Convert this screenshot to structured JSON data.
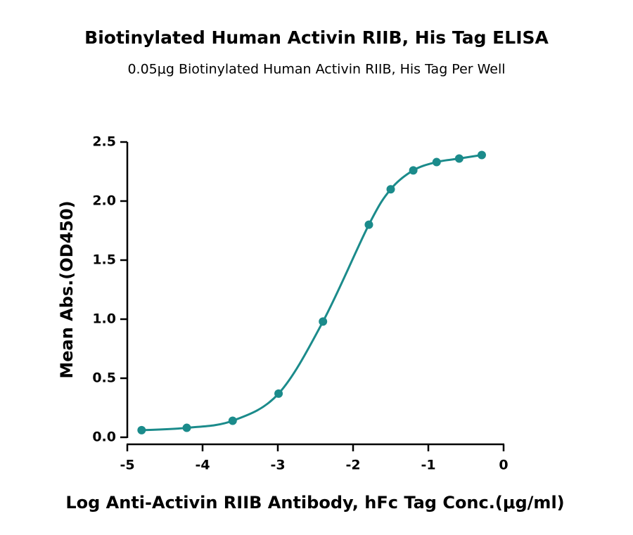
{
  "chart_data": {
    "type": "scatter",
    "title": "Biotinylated Human Activin RIIB, His Tag ELISA",
    "subtitle": "0.05μg Biotinylated Human Activin RIIB, His Tag Per Well",
    "x_label": "Log Anti-Activin RIIB Antibody, hFc Tag Conc.(μg/ml)",
    "y_label": "Mean Abs.(OD450)",
    "x": [
      -4.81,
      -4.21,
      -3.6,
      -2.99,
      -2.4,
      -1.79,
      -1.5,
      -1.2,
      -0.89,
      -0.59,
      -0.29
    ],
    "series": [
      {
        "color": "#1b8b8b",
        "values": [
          0.06,
          0.08,
          0.14,
          0.37,
          0.98,
          1.8,
          2.1,
          2.26,
          2.33,
          2.36,
          2.39
        ]
      }
    ],
    "xlim": [
      -5,
      0
    ],
    "xticks": [
      -5,
      -4,
      -3,
      -2,
      -1,
      0
    ],
    "ylim": [
      0,
      2.5
    ],
    "yticks": [
      {
        "value": 0,
        "label": "0.0"
      },
      0.5,
      {
        "value": 1,
        "label": "1.0"
      },
      1.5,
      {
        "value": 2,
        "label": "2.0"
      },
      2.5
    ]
  }
}
